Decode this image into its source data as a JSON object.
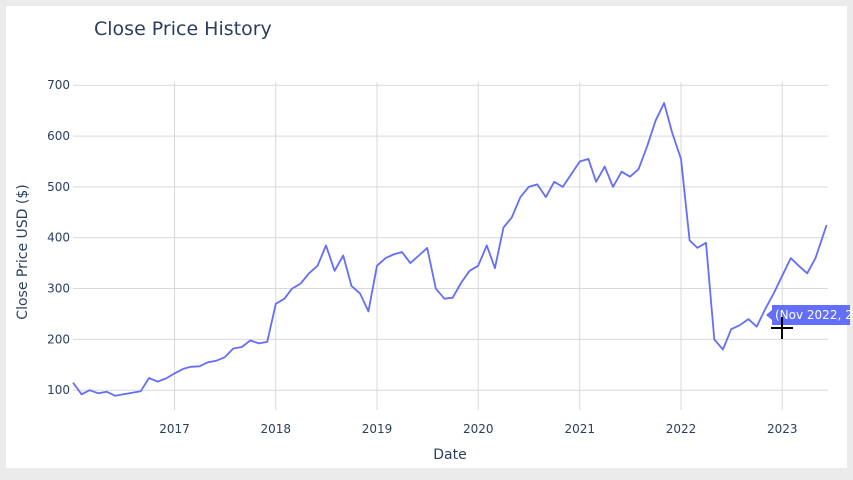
{
  "chart_data": {
    "type": "line",
    "title": "Close Price History",
    "xlabel": "Date",
    "ylabel": "Close Price USD ($)",
    "x_tick_labels": [
      "2017",
      "2018",
      "2019",
      "2020",
      "2021",
      "2022",
      "2023"
    ],
    "y_tick_labels": [
      "100",
      "200",
      "300",
      "400",
      "500",
      "600",
      "700"
    ],
    "xlim": [
      "2016-01-01",
      "2023-06-15"
    ],
    "ylim": [
      65,
      730
    ],
    "grid": true,
    "line_color": "#636efa",
    "series": [
      {
        "x": [
          "2016-01-01",
          "2016-02-01",
          "2016-03-01",
          "2016-04-01",
          "2016-05-01",
          "2016-06-01",
          "2016-07-01",
          "2016-08-01",
          "2016-09-01",
          "2016-10-01",
          "2016-11-01",
          "2016-12-01",
          "2017-01-01",
          "2017-02-01",
          "2017-03-01",
          "2017-04-01",
          "2017-05-01",
          "2017-06-01",
          "2017-07-01",
          "2017-08-01",
          "2017-09-01",
          "2017-10-01",
          "2017-11-01",
          "2017-12-01",
          "2018-01-01",
          "2018-02-01",
          "2018-03-01",
          "2018-04-01",
          "2018-05-01",
          "2018-06-01",
          "2018-07-01",
          "2018-08-01",
          "2018-09-01",
          "2018-10-01",
          "2018-11-01",
          "2018-12-01",
          "2019-01-01",
          "2019-02-01",
          "2019-03-01",
          "2019-04-01",
          "2019-05-01",
          "2019-06-01",
          "2019-07-01",
          "2019-08-01",
          "2019-09-01",
          "2019-10-01",
          "2019-11-01",
          "2019-12-01",
          "2020-01-01",
          "2020-02-01",
          "2020-03-01",
          "2020-04-01",
          "2020-05-01",
          "2020-06-01",
          "2020-07-01",
          "2020-08-01",
          "2020-09-01",
          "2020-10-01",
          "2020-11-01",
          "2020-12-01",
          "2021-01-01",
          "2021-02-01",
          "2021-03-01",
          "2021-04-01",
          "2021-05-01",
          "2021-06-01",
          "2021-07-01",
          "2021-08-01",
          "2021-09-01",
          "2021-10-01",
          "2021-11-01",
          "2021-12-01",
          "2022-01-01",
          "2022-02-01",
          "2022-03-01",
          "2022-04-01",
          "2022-05-01",
          "2022-06-01",
          "2022-07-01",
          "2022-08-01",
          "2022-09-01",
          "2022-10-01",
          "2022-11-01",
          "2022-12-01",
          "2023-01-01",
          "2023-02-01",
          "2023-03-01",
          "2023-04-01",
          "2023-05-01",
          "2023-06-10"
        ],
        "values": [
          115,
          92,
          100,
          94,
          97,
          89,
          92,
          95,
          98,
          124,
          117,
          123,
          133,
          142,
          146,
          147,
          155,
          158,
          165,
          182,
          185,
          198,
          192,
          195,
          270,
          280,
          300,
          310,
          330,
          345,
          385,
          335,
          365,
          305,
          290,
          255,
          345,
          360,
          367,
          372,
          350,
          365,
          380,
          300,
          280,
          282,
          312,
          335,
          345,
          385,
          340,
          420,
          440,
          480,
          500,
          505,
          480,
          510,
          500,
          525,
          550,
          555,
          510,
          540,
          500,
          530,
          520,
          535,
          580,
          630,
          665,
          605,
          555,
          395,
          380,
          390,
          200,
          180,
          220,
          228,
          240,
          225,
          260,
          290,
          325,
          360,
          345,
          330,
          360,
          425
        ]
      }
    ],
    "hover_label": "(Nov 2022, 2"
  }
}
